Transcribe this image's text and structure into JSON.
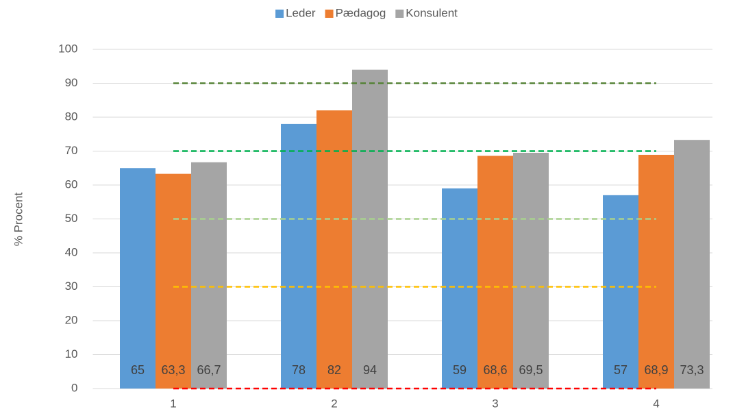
{
  "chart_data": {
    "type": "bar",
    "y_label": "% Procent",
    "categories": [
      "1",
      "2",
      "3",
      "4"
    ],
    "series": [
      {
        "name": "Leder",
        "color": "#5b9bd5",
        "values": [
          65,
          78,
          59,
          57
        ],
        "value_labels": [
          "65",
          "78",
          "59",
          "57"
        ]
      },
      {
        "name": "Pædagog",
        "color": "#ed7d31",
        "values": [
          63.3,
          82,
          68.6,
          68.9
        ],
        "value_labels": [
          "63,3",
          "82",
          "68,6",
          "68,9"
        ]
      },
      {
        "name": "Konsulent",
        "color": "#a5a5a5",
        "values": [
          66.7,
          94,
          69.5,
          73.3
        ],
        "value_labels": [
          "66,7",
          "94",
          "69,5",
          "73,3"
        ]
      }
    ],
    "reference_lines": [
      {
        "value": 90,
        "color": "#548235"
      },
      {
        "value": 70,
        "color": "#00b050"
      },
      {
        "value": 50,
        "color": "#a9d18e"
      },
      {
        "value": 30,
        "color": "#ffc000"
      },
      {
        "value": 0,
        "color": "#ff0000"
      }
    ],
    "ylim": [
      0,
      100
    ],
    "yticks": [
      0,
      10,
      20,
      30,
      40,
      50,
      60,
      70,
      80,
      90,
      100
    ],
    "grid": true,
    "legend": "top"
  }
}
